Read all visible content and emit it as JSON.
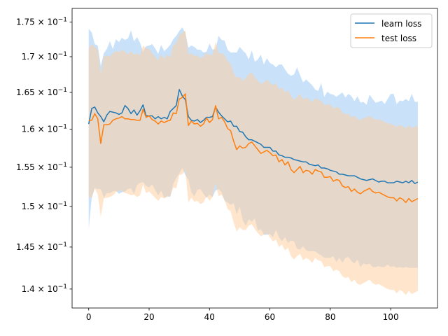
{
  "chart_data": {
    "type": "line",
    "title": "",
    "xlabel": "",
    "ylabel": "",
    "y_scale": "log",
    "xlim": [
      -5.5,
      115.5
    ],
    "ylim": [
      0.1378,
      0.177
    ],
    "xticks": [
      0,
      20,
      40,
      60,
      80,
      100
    ],
    "xtick_labels": [
      "0",
      "20",
      "40",
      "60",
      "80",
      "100"
    ],
    "yticks": [
      0.14,
      0.145,
      0.15,
      0.155,
      0.16,
      0.165,
      0.17,
      0.175
    ],
    "ytick_labels": [
      {
        "base": "1.4 × 10",
        "exp": "−1"
      },
      {
        "base": "1.45 × 10",
        "exp": "−1"
      },
      {
        "base": "1.5 × 10",
        "exp": "−1"
      },
      {
        "base": "1.55 × 10",
        "exp": "−1"
      },
      {
        "base": "1.6 × 10",
        "exp": "−1"
      },
      {
        "base": "1.65 × 10",
        "exp": "−1"
      },
      {
        "base": "1.7 × 10",
        "exp": "−1"
      },
      {
        "base": "1.75 × 10",
        "exp": "−1"
      }
    ],
    "grid": false,
    "legend_position": "top-right",
    "x": [
      0,
      1,
      2,
      3,
      4,
      5,
      6,
      7,
      8,
      9,
      10,
      11,
      12,
      13,
      14,
      15,
      16,
      17,
      18,
      19,
      20,
      21,
      22,
      23,
      24,
      25,
      26,
      27,
      28,
      29,
      30,
      31,
      32,
      33,
      34,
      35,
      36,
      37,
      38,
      39,
      40,
      41,
      42,
      43,
      44,
      45,
      46,
      47,
      48,
      49,
      50,
      51,
      52,
      53,
      54,
      55,
      56,
      57,
      58,
      59,
      60,
      61,
      62,
      63,
      64,
      65,
      66,
      67,
      68,
      69,
      70,
      71,
      72,
      73,
      74,
      75,
      76,
      77,
      78,
      79,
      80,
      81,
      82,
      83,
      84,
      85,
      86,
      87,
      88,
      89,
      90,
      91,
      92,
      93,
      94,
      95,
      96,
      97,
      98,
      99,
      100,
      101,
      102,
      103,
      104,
      105,
      106,
      107,
      108,
      109
    ],
    "series": [
      {
        "name": "learn loss",
        "color": "#1f77b4",
        "band_color": "#a6cff5",
        "values": [
          0.1607,
          0.1628,
          0.163,
          0.1622,
          0.1617,
          0.161,
          0.1619,
          0.1624,
          0.1623,
          0.1622,
          0.162,
          0.1622,
          0.1632,
          0.1628,
          0.1621,
          0.1626,
          0.1619,
          0.1625,
          0.1633,
          0.1618,
          0.1618,
          0.1618,
          0.1614,
          0.1617,
          0.1614,
          0.1616,
          0.1614,
          0.1624,
          0.1628,
          0.1632,
          0.1654,
          0.1645,
          0.164,
          0.1617,
          0.1612,
          0.1611,
          0.1613,
          0.1609,
          0.1612,
          0.1616,
          0.1616,
          0.1617,
          0.163,
          0.1623,
          0.1618,
          0.1614,
          0.161,
          0.1611,
          0.1604,
          0.1604,
          0.1597,
          0.1596,
          0.159,
          0.1586,
          0.1586,
          0.1584,
          0.1582,
          0.158,
          0.1576,
          0.1576,
          0.1576,
          0.1571,
          0.1571,
          0.1566,
          0.1565,
          0.1563,
          0.1563,
          0.1562,
          0.156,
          0.1559,
          0.1558,
          0.1557,
          0.1557,
          0.1554,
          0.1553,
          0.1552,
          0.1553,
          0.1549,
          0.1549,
          0.1548,
          0.1546,
          0.1545,
          0.1544,
          0.1541,
          0.1541,
          0.154,
          0.1539,
          0.1539,
          0.1539,
          0.1537,
          0.1535,
          0.1534,
          0.1533,
          0.1534,
          0.1535,
          0.1533,
          0.1531,
          0.1532,
          0.1532,
          0.153,
          0.153,
          0.153,
          0.1532,
          0.1531,
          0.153,
          0.1532,
          0.153,
          0.1533,
          0.1529,
          0.1531
        ],
        "upper": [
          0.174,
          0.1735,
          0.1718,
          0.1716,
          0.1687,
          0.1705,
          0.1711,
          0.1722,
          0.1711,
          0.1725,
          0.1721,
          0.1727,
          0.1724,
          0.1726,
          0.1738,
          0.1722,
          0.1728,
          0.172,
          0.1707,
          0.1715,
          0.1716,
          0.1718,
          0.1712,
          0.1704,
          0.1717,
          0.1708,
          0.1712,
          0.1717,
          0.1725,
          0.173,
          0.1737,
          0.1742,
          0.1734,
          0.1713,
          0.1716,
          0.1714,
          0.171,
          0.171,
          0.1706,
          0.1707,
          0.1719,
          0.171,
          0.1711,
          0.173,
          0.1724,
          0.1723,
          0.171,
          0.1706,
          0.1706,
          0.1706,
          0.1714,
          0.1709,
          0.1705,
          0.1696,
          0.1709,
          0.1693,
          0.1696,
          0.1703,
          0.1689,
          0.1698,
          0.1691,
          0.1689,
          0.1685,
          0.1689,
          0.1689,
          0.1682,
          0.1676,
          0.1673,
          0.1675,
          0.1685,
          0.1674,
          0.1664,
          0.1668,
          0.1664,
          0.166,
          0.1654,
          0.1652,
          0.1663,
          0.1644,
          0.1651,
          0.1648,
          0.1647,
          0.1644,
          0.1647,
          0.165,
          0.1643,
          0.1648,
          0.1645,
          0.1638,
          0.1645,
          0.1636,
          0.1637,
          0.1633,
          0.1647,
          0.1641,
          0.1636,
          0.1637,
          0.1639,
          0.1634,
          0.1641,
          0.1648,
          0.1648,
          0.1634,
          0.1639,
          0.1638,
          0.1641,
          0.1638,
          0.1648,
          0.1637,
          0.1637
        ],
        "lower": [
          0.1472,
          0.1511,
          0.1523,
          0.1522,
          0.1522,
          0.1511,
          0.1517,
          0.1517,
          0.1519,
          0.152,
          0.1516,
          0.1518,
          0.1519,
          0.1522,
          0.1523,
          0.1516,
          0.1527,
          0.153,
          0.1531,
          0.1526,
          0.1524,
          0.1528,
          0.1521,
          0.1514,
          0.152,
          0.1511,
          0.1513,
          0.1512,
          0.1529,
          0.1536,
          0.1542,
          0.1549,
          0.154,
          0.1534,
          0.1518,
          0.1513,
          0.1521,
          0.1522,
          0.1516,
          0.1511,
          0.1515,
          0.1512,
          0.152,
          0.1522,
          0.1518,
          0.1507,
          0.1505,
          0.1502,
          0.1504,
          0.149,
          0.15,
          0.1483,
          0.1476,
          0.1484,
          0.1481,
          0.1485,
          0.147,
          0.1472,
          0.1465,
          0.1465,
          0.1466,
          0.1462,
          0.1471,
          0.1462,
          0.1457,
          0.1462,
          0.1455,
          0.1458,
          0.1457,
          0.1448,
          0.1447,
          0.1451,
          0.1446,
          0.1445,
          0.1445,
          0.1445,
          0.1442,
          0.144,
          0.1437,
          0.1437,
          0.1437,
          0.1439,
          0.1432,
          0.1437,
          0.1431,
          0.1437,
          0.1438,
          0.1433,
          0.143,
          0.1435,
          0.1426,
          0.143,
          0.1429,
          0.143,
          0.1426,
          0.1426,
          0.1427,
          0.1426,
          0.1426,
          0.1429,
          0.1426,
          0.1427,
          0.1425,
          0.1426,
          0.1425,
          0.1426,
          0.1425,
          0.1425,
          0.1425,
          0.1425
        ]
      },
      {
        "name": "test loss",
        "color": "#ff7f0e",
        "band_color": "#ffcc99",
        "values": [
          0.1612,
          0.1612,
          0.1621,
          0.1614,
          0.1581,
          0.1606,
          0.1606,
          0.1607,
          0.1612,
          0.1614,
          0.1615,
          0.1617,
          0.1614,
          0.1614,
          0.1613,
          0.1613,
          0.1612,
          0.1612,
          0.1627,
          0.1616,
          0.1618,
          0.1613,
          0.1611,
          0.1607,
          0.1611,
          0.1609,
          0.1611,
          0.1612,
          0.1622,
          0.1621,
          0.1641,
          0.1643,
          0.1648,
          0.1605,
          0.1611,
          0.1607,
          0.1608,
          0.1604,
          0.1607,
          0.1615,
          0.1609,
          0.1613,
          0.1632,
          0.1614,
          0.1616,
          0.161,
          0.1601,
          0.1598,
          0.1584,
          0.1573,
          0.1578,
          0.1575,
          0.1576,
          0.1581,
          0.1583,
          0.1578,
          0.1573,
          0.1568,
          0.157,
          0.1572,
          0.1569,
          0.1565,
          0.1566,
          0.1557,
          0.156,
          0.1553,
          0.1557,
          0.1547,
          0.1543,
          0.1547,
          0.1551,
          0.1543,
          0.1546,
          0.1545,
          0.1541,
          0.1547,
          0.1545,
          0.1544,
          0.1537,
          0.1537,
          0.1538,
          0.1532,
          0.1534,
          0.1533,
          0.1526,
          0.1524,
          0.1525,
          0.1519,
          0.1522,
          0.1518,
          0.1516,
          0.1519,
          0.1521,
          0.1523,
          0.1519,
          0.1517,
          0.1518,
          0.1516,
          0.1514,
          0.1512,
          0.1511,
          0.1511,
          0.1507,
          0.1511,
          0.1509,
          0.1505,
          0.151,
          0.1506,
          0.1508,
          0.151
        ],
        "upper": [
          0.1712,
          0.1718,
          0.1714,
          0.171,
          0.1675,
          0.17,
          0.1702,
          0.17,
          0.1705,
          0.1708,
          0.1707,
          0.1709,
          0.1708,
          0.1703,
          0.1708,
          0.1703,
          0.1705,
          0.1702,
          0.1716,
          0.1712,
          0.1711,
          0.1705,
          0.17,
          0.1695,
          0.1703,
          0.1697,
          0.1703,
          0.1699,
          0.1716,
          0.172,
          0.1731,
          0.1734,
          0.1738,
          0.1703,
          0.1705,
          0.1701,
          0.1702,
          0.1698,
          0.17,
          0.1706,
          0.1702,
          0.1703,
          0.1721,
          0.1705,
          0.1705,
          0.1702,
          0.1694,
          0.169,
          0.1677,
          0.167,
          0.1672,
          0.1666,
          0.167,
          0.1675,
          0.1678,
          0.1671,
          0.1666,
          0.1662,
          0.1664,
          0.1668,
          0.1663,
          0.166,
          0.1663,
          0.1654,
          0.1657,
          0.165,
          0.1653,
          0.1645,
          0.164,
          0.1643,
          0.1648,
          0.164,
          0.1643,
          0.164,
          0.1637,
          0.1642,
          0.164,
          0.1638,
          0.1633,
          0.1633,
          0.1634,
          0.1628,
          0.163,
          0.1629,
          0.1622,
          0.162,
          0.1621,
          0.1616,
          0.1618,
          0.1614,
          0.1612,
          0.1615,
          0.1616,
          0.1618,
          0.1615,
          0.1613,
          0.1613,
          0.1612,
          0.161,
          0.1608,
          0.1607,
          0.1606,
          0.1603,
          0.1606,
          0.1604,
          0.1601,
          0.1605,
          0.1602,
          0.1603,
          0.1605
        ],
        "lower": [
          0.1512,
          0.1511,
          0.1523,
          0.1515,
          0.1487,
          0.151,
          0.1511,
          0.1512,
          0.1514,
          0.1518,
          0.152,
          0.152,
          0.1517,
          0.1516,
          0.1514,
          0.1515,
          0.1512,
          0.1514,
          0.1528,
          0.1517,
          0.1519,
          0.1515,
          0.1511,
          0.1507,
          0.1512,
          0.151,
          0.1512,
          0.1513,
          0.1524,
          0.1523,
          0.154,
          0.1541,
          0.1546,
          0.1505,
          0.1511,
          0.1506,
          0.1507,
          0.1503,
          0.1505,
          0.1513,
          0.1507,
          0.1512,
          0.153,
          0.1513,
          0.1515,
          0.1508,
          0.1497,
          0.1494,
          0.148,
          0.1469,
          0.1474,
          0.1471,
          0.1471,
          0.1476,
          0.1478,
          0.1472,
          0.1467,
          0.1463,
          0.1465,
          0.1467,
          0.1462,
          0.1457,
          0.1459,
          0.145,
          0.1453,
          0.1446,
          0.1449,
          0.1439,
          0.1435,
          0.1439,
          0.1442,
          0.1434,
          0.1437,
          0.1435,
          0.1431,
          0.1437,
          0.1434,
          0.1433,
          0.1426,
          0.1427,
          0.1427,
          0.1421,
          0.1423,
          0.1421,
          0.1415,
          0.1413,
          0.1414,
          0.1408,
          0.1411,
          0.1406,
          0.1405,
          0.1407,
          0.1409,
          0.1411,
          0.1407,
          0.1405,
          0.1406,
          0.1404,
          0.1402,
          0.14,
          0.1399,
          0.1399,
          0.1395,
          0.1399,
          0.1397,
          0.1393,
          0.1398,
          0.1394,
          0.1396,
          0.1398
        ]
      }
    ]
  }
}
